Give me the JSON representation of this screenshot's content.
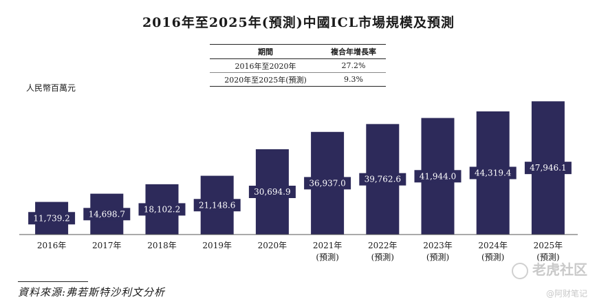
{
  "chart_data": {
    "type": "bar",
    "title": "2016年至2025年(預測)中國ICL市場規模及預測",
    "ylabel": "人民幣百萬元",
    "xlabel": "",
    "categories": [
      "2016年",
      "2017年",
      "2018年",
      "2019年",
      "2020年",
      "2021年",
      "2022年",
      "2023年",
      "2024年",
      "2025年"
    ],
    "category_subs": [
      "",
      "",
      "",
      "",
      "",
      "(預測)",
      "(預測)",
      "(預測)",
      "(預測)",
      "(預測)"
    ],
    "values": [
      11739.2,
      14698.7,
      18102.2,
      21148.6,
      30694.9,
      36937.0,
      39762.6,
      41944.0,
      44319.4,
      47946.1
    ],
    "data_labels": [
      "11,739.2",
      "14,698.7",
      "18,102.2",
      "21,148.6",
      "30,694.9",
      "36,937.0",
      "39,762.6",
      "41,944.0",
      "44,319.4",
      "47,946.1"
    ],
    "ylim": [
      0,
      50000
    ],
    "bar_color": "#2d2a5a",
    "label_box_color": "#2d2a5a",
    "label_text_color": "#ffffff"
  },
  "cagr_table": {
    "headers": [
      "期間",
      "複合年增長率"
    ],
    "rows": [
      {
        "period": "2016年至2020年",
        "rate": "27.2%"
      },
      {
        "period": "2020年至2025年(預測)",
        "rate": "9.3%"
      }
    ]
  },
  "source": "資料來源:弗若斯特沙利文分析",
  "watermark": {
    "main": "老虎社区",
    "sub": "@阿财笔记"
  }
}
